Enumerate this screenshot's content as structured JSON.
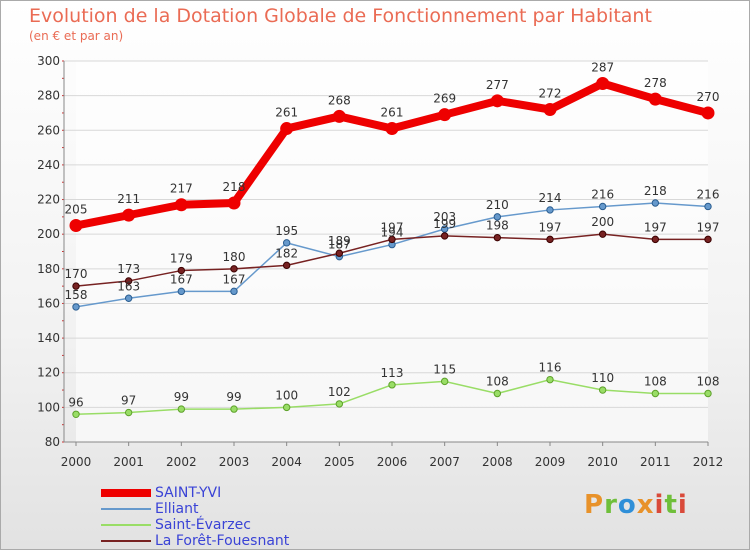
{
  "title": "Evolution de la Dotation Globale de Fonctionnement par Habitant",
  "subtitle": "(en € et par an)",
  "logo": {
    "text": "Proxiti",
    "colors": [
      "#e8922a",
      "#6fbf3a",
      "#2f8fd8",
      "#e8922a",
      "#d94a3a",
      "#6fbf3a",
      "#d94a3a"
    ]
  },
  "chart_data": {
    "type": "line",
    "title": "Evolution de la Dotation Globale de Fonctionnement par Habitant",
    "subtitle": "(en € et par an)",
    "xlabel": "",
    "ylabel": "",
    "x": [
      "2000",
      "2001",
      "2002",
      "2003",
      "2004",
      "2005",
      "2006",
      "2007",
      "2008",
      "2009",
      "2010",
      "2011",
      "2012"
    ],
    "ylim": [
      80,
      300
    ],
    "yticks": [
      80,
      100,
      120,
      140,
      160,
      180,
      200,
      220,
      240,
      260,
      280,
      300
    ],
    "grid": "horizontal",
    "legend_position": "bottom-left",
    "series": [
      {
        "name": "SAINT-YVI",
        "color": "#ee0000",
        "values": [
          205,
          211,
          217,
          218,
          261,
          268,
          261,
          269,
          277,
          272,
          287,
          278,
          270
        ]
      },
      {
        "name": "Elliant",
        "color": "#6699cc",
        "values": [
          158,
          163,
          167,
          167,
          195,
          187,
          194,
          203,
          210,
          214,
          216,
          218,
          216
        ]
      },
      {
        "name": "Saint-Évarzec",
        "color": "#99dd66",
        "values": [
          96,
          97,
          99,
          99,
          100,
          102,
          113,
          115,
          108,
          116,
          110,
          108,
          108
        ]
      },
      {
        "name": "La Forêt-Fouesnant",
        "color": "#772222",
        "values": [
          170,
          173,
          179,
          180,
          182,
          189,
          197,
          199,
          198,
          197,
          200,
          197,
          197
        ]
      }
    ]
  }
}
